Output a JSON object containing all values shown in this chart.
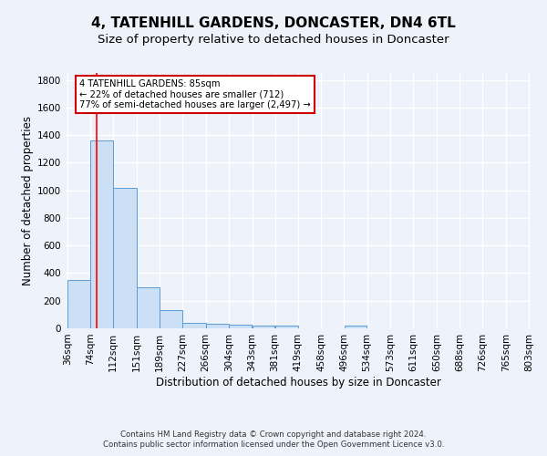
{
  "title": "4, TATENHILL GARDENS, DONCASTER, DN4 6TL",
  "subtitle": "Size of property relative to detached houses in Doncaster",
  "xlabel": "Distribution of detached houses by size in Doncaster",
  "ylabel": "Number of detached properties",
  "bar_edges": [
    36,
    74,
    112,
    151,
    189,
    227,
    266,
    304,
    343,
    381,
    419,
    458,
    496,
    534,
    573,
    611,
    650,
    688,
    726,
    765,
    803
  ],
  "bar_heights": [
    350,
    1360,
    1020,
    295,
    130,
    40,
    35,
    25,
    20,
    20,
    0,
    0,
    20,
    0,
    0,
    0,
    0,
    0,
    0,
    0
  ],
  "bar_color": "#cce0f5",
  "bar_edgecolor": "#5b9bd5",
  "red_line_x": 85,
  "ylim": [
    0,
    1850
  ],
  "annotation_text": "4 TATENHILL GARDENS: 85sqm\n← 22% of detached houses are smaller (712)\n77% of semi-detached houses are larger (2,497) →",
  "annotation_box_edgecolor": "#cc0000",
  "annotation_box_facecolor": "#ffffff",
  "footer_line1": "Contains HM Land Registry data © Crown copyright and database right 2024.",
  "footer_line2": "Contains public sector information licensed under the Open Government Licence v3.0.",
  "bg_color": "#eef2fa",
  "grid_color": "#ffffff",
  "title_fontsize": 11,
  "subtitle_fontsize": 9.5,
  "ylabel_fontsize": 8.5,
  "xlabel_fontsize": 8.5,
  "tick_fontsize": 7.5,
  "footer_fontsize": 6.2
}
